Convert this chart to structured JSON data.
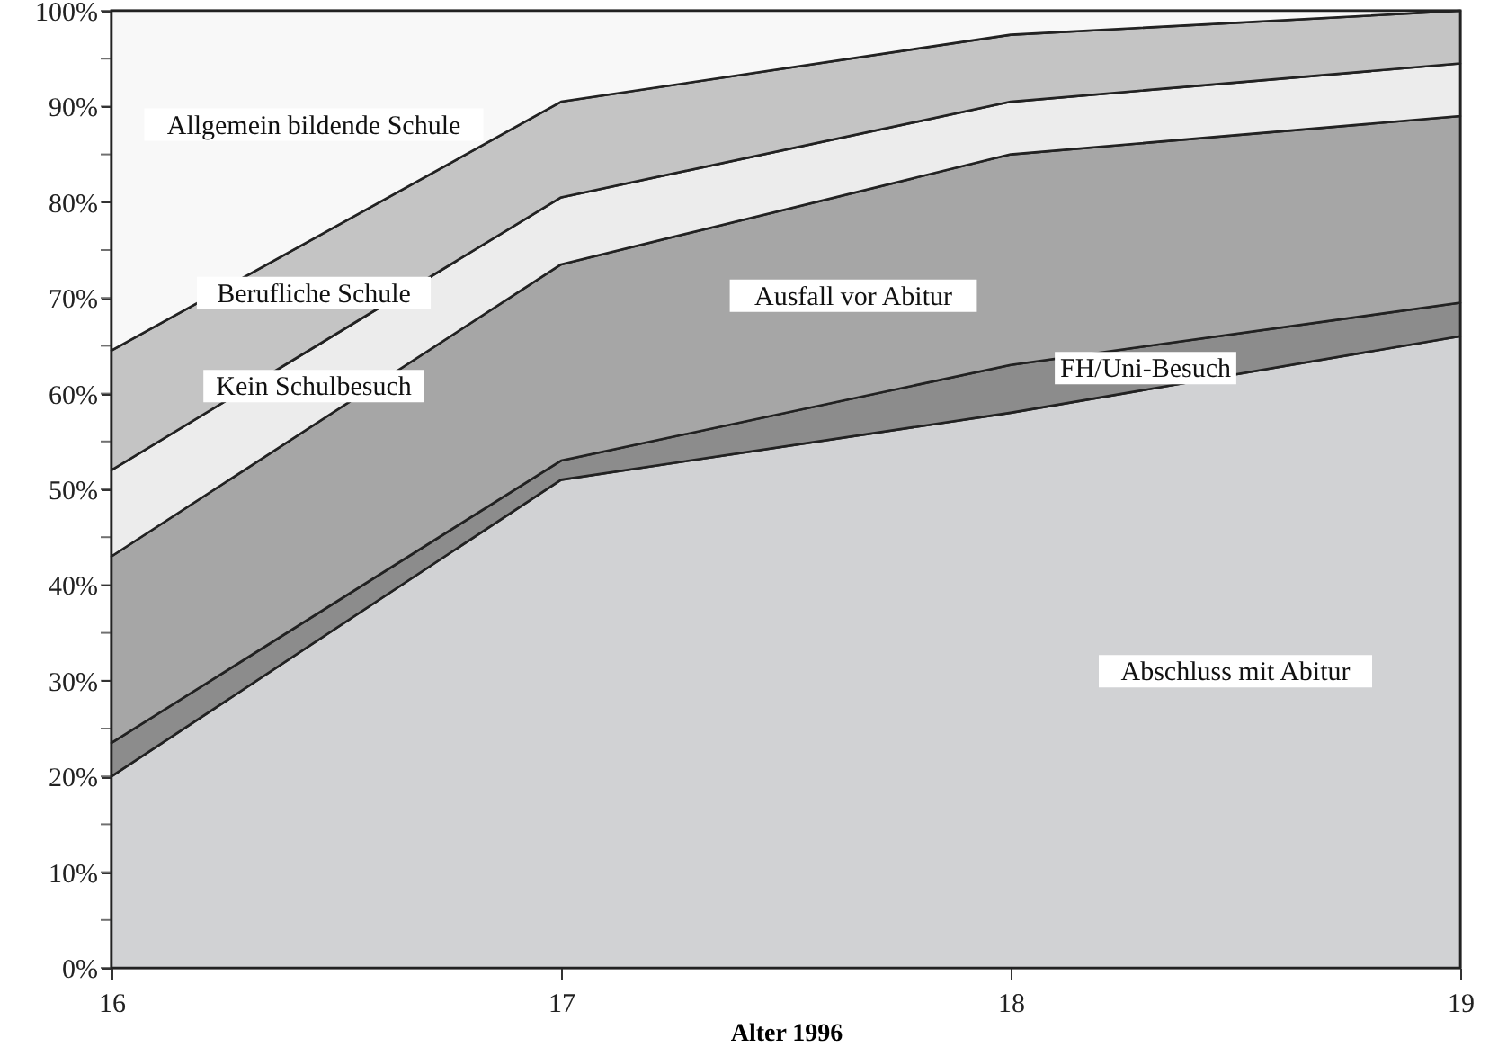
{
  "chart_data": {
    "type": "area",
    "stacked": true,
    "xlabel": "Alter 1996",
    "x": [
      16,
      17,
      18,
      19
    ],
    "series": [
      {
        "name": "Abschluss mit Abitur",
        "color": "#d1d2d4",
        "values": [
          20,
          51,
          58,
          66
        ]
      },
      {
        "name": "FH/Uni-Besuch",
        "color": "#8c8c8c",
        "values": [
          3.5,
          2,
          5,
          3.5
        ]
      },
      {
        "name": "Ausfall vor Abitur",
        "color": "#a6a6a6",
        "values": [
          19.5,
          20.5,
          22,
          19.5
        ]
      },
      {
        "name": "Kein Schulbesuch",
        "color": "#ececec",
        "values": [
          9,
          7,
          5.5,
          5.5
        ]
      },
      {
        "name": "Berufliche Schule",
        "color": "#c4c4c4",
        "values": [
          12.5,
          10,
          7,
          5.5
        ]
      },
      {
        "name": "Allgemein bildende Schule",
        "color": "#f8f8f8",
        "values": [
          35.5,
          9.5,
          2.5,
          0
        ]
      }
    ],
    "xlim": [
      16,
      19
    ],
    "xticks": [
      16,
      17,
      18,
      19
    ],
    "ylim": [
      0,
      100
    ],
    "yticks": [
      {
        "value": 0,
        "label": "0%"
      },
      {
        "value": 5,
        "label": null
      },
      {
        "value": 10,
        "label": "10%"
      },
      {
        "value": 15,
        "label": null
      },
      {
        "value": 20,
        "label": "20%"
      },
      {
        "value": 25,
        "label": null
      },
      {
        "value": 30,
        "label": "30%"
      },
      {
        "value": 35,
        "label": null
      },
      {
        "value": 40,
        "label": "40%"
      },
      {
        "value": 45,
        "label": null
      },
      {
        "value": 50,
        "label": "50%"
      },
      {
        "value": 55,
        "label": null
      },
      {
        "value": 60,
        "label": "60%"
      },
      {
        "value": 65,
        "label": null
      },
      {
        "value": 70,
        "label": "70%"
      },
      {
        "value": 75,
        "label": null
      },
      {
        "value": 80,
        "label": "80%"
      },
      {
        "value": 85,
        "label": null
      },
      {
        "value": 90,
        "label": "90%"
      },
      {
        "value": 95,
        "label": null
      },
      {
        "value": 100,
        "label": "100%"
      }
    ],
    "grid": false
  }
}
